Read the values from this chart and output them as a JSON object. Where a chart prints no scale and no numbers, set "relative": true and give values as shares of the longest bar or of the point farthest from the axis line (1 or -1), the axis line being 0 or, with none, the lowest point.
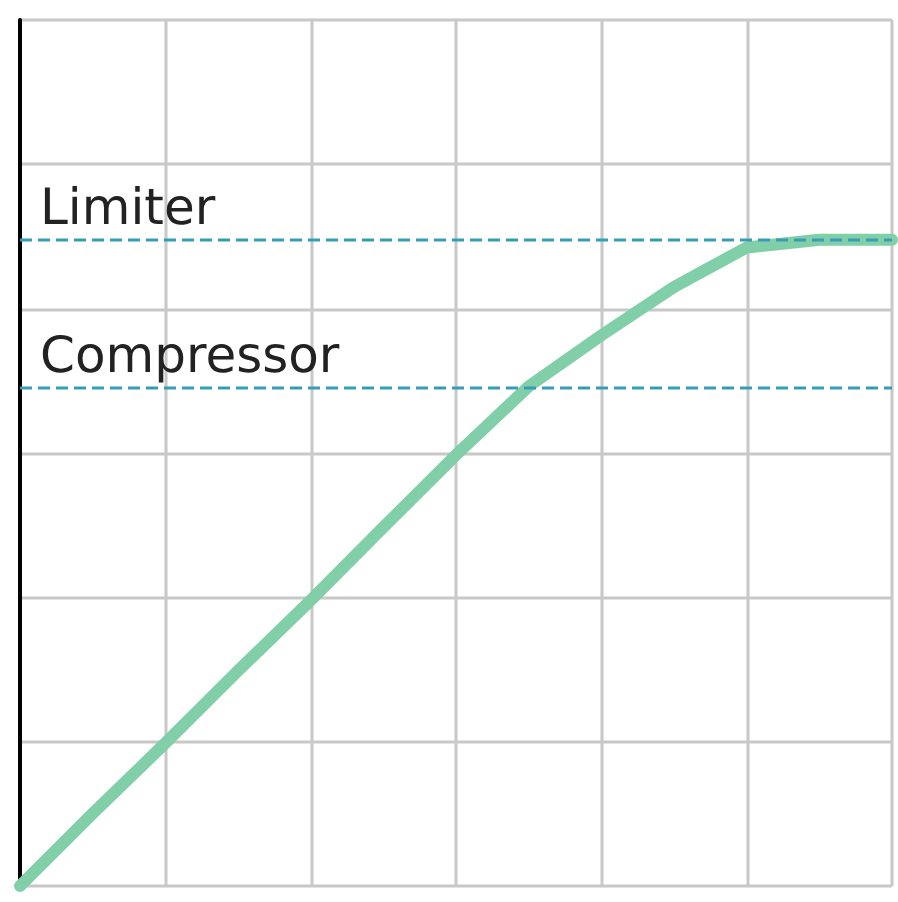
{
  "chart_data": {
    "type": "line",
    "relative": true,
    "categories": [
      null,
      null,
      null,
      null,
      null,
      null,
      null,
      null,
      null,
      null,
      null,
      null,
      null
    ],
    "series": [
      {
        "color": "#80cfa9",
        "values": [
          0,
          0.112,
          0.221,
          0.333,
          0.442,
          0.555,
          0.667,
          0.773,
          0.852,
          0.927,
          0.988,
          1,
          1
        ]
      }
    ],
    "ref_lines": [
      {
        "axis": "y",
        "value": 1,
        "label": "Limiter",
        "color": "#3a9bb5",
        "line_style": "dashed"
      },
      {
        "axis": "y",
        "value": 0.77,
        "label": "Compressor",
        "color": "#3a9bb5",
        "line_style": "dashed"
      }
    ],
    "grid": true,
    "marker": "none",
    "line_style": "solid"
  }
}
